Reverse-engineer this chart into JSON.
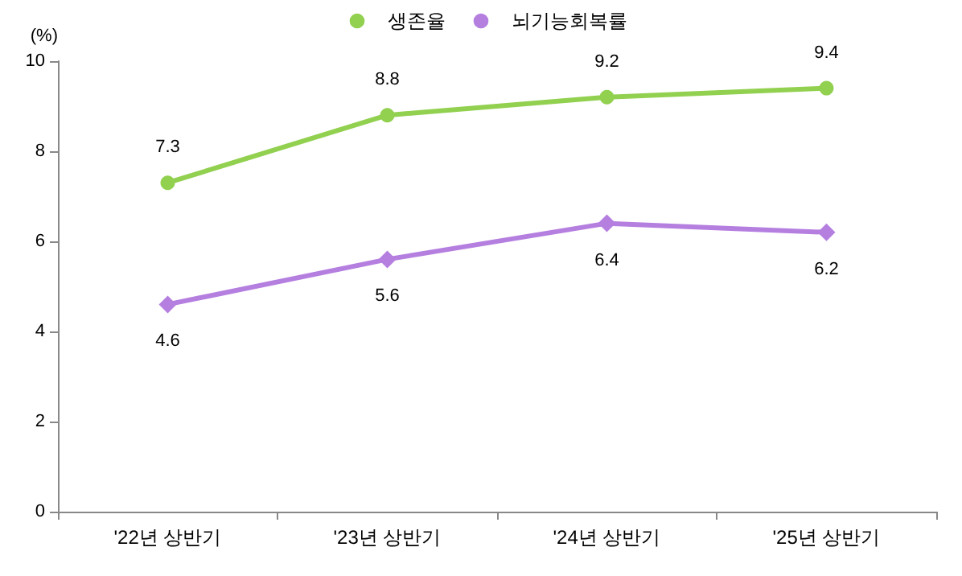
{
  "chart_data": {
    "type": "line",
    "ylabel": "(%)",
    "categories": [
      "'22년 상반기",
      "'23년 상반기",
      "'24년 상반기",
      "'25년 상반기"
    ],
    "series": [
      {
        "name": "생존율",
        "color": "#92d050",
        "marker": "circle",
        "values": [
          7.3,
          8.8,
          9.2,
          9.4
        ]
      },
      {
        "name": "뇌기능회복률",
        "color": "#b57fe0",
        "marker": "diamond",
        "values": [
          4.6,
          5.6,
          6.4,
          6.2
        ]
      }
    ],
    "ylim": [
      0,
      10
    ],
    "yticks": [
      0,
      2,
      4,
      6,
      8,
      10
    ],
    "grid": false,
    "legend": "top",
    "data_labels": true
  }
}
